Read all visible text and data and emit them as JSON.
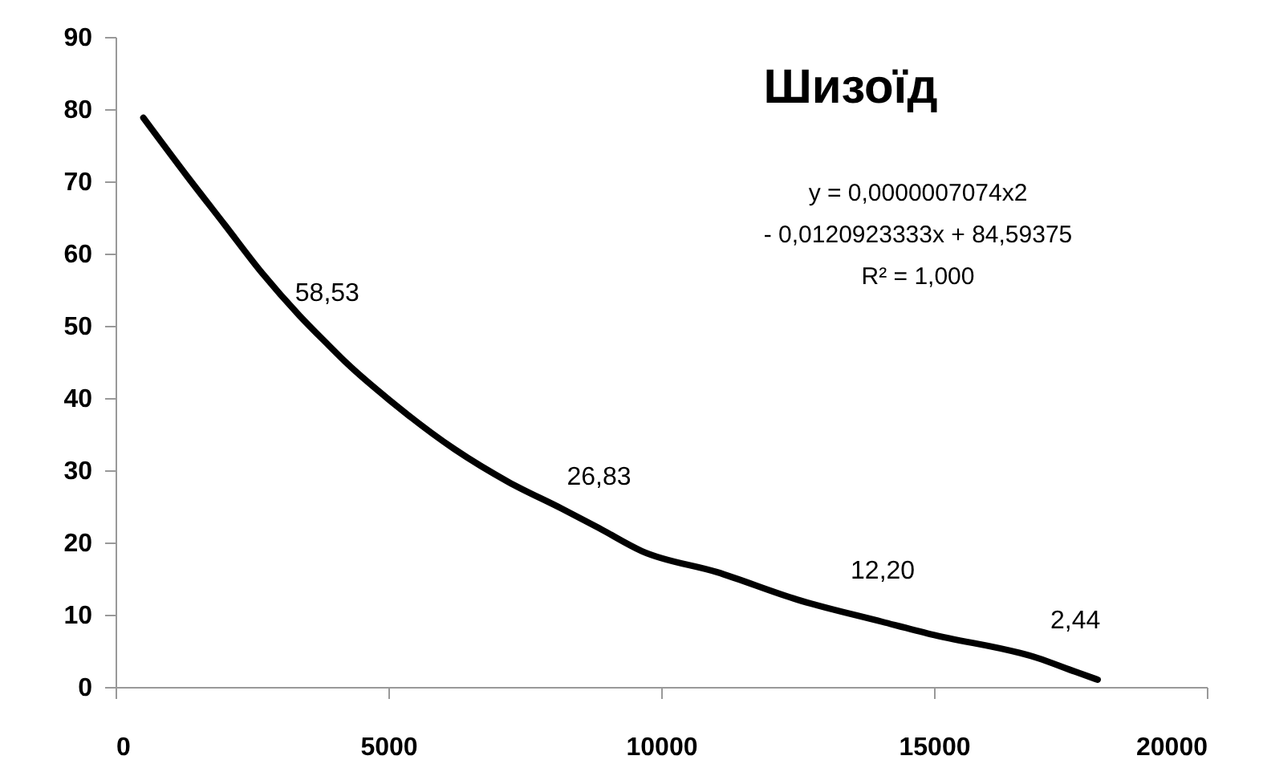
{
  "chart_data": {
    "type": "line",
    "title": "Шизоїд",
    "x": [
      510,
      1313,
      2000,
      2686,
      3373,
      3880,
      4255,
      5039,
      6216,
      7196,
      8176,
      8860,
      9647,
      11020,
      12490,
      14060,
      14940,
      16900,
      17590,
      18000
    ],
    "series": [
      {
        "color": "#000000",
        "values": [
          78.8,
          70.7,
          64,
          57.3,
          51.4,
          47.5,
          44.7,
          39.6,
          32.9,
          28.4,
          24.7,
          22.0,
          18.8,
          15.9,
          12.1,
          9.0,
          7.3,
          4.0,
          2.1,
          1.0
        ]
      }
    ],
    "xlim": [
      0,
      20000
    ],
    "xticks": [
      0,
      5000,
      10000,
      15000,
      20000
    ],
    "ylim": [
      0,
      90
    ],
    "yticks": [
      0,
      10,
      20,
      30,
      40,
      50,
      60,
      70,
      80,
      90
    ],
    "grid": false,
    "marker": "none",
    "line_style": "solid",
    "annotations": [
      {
        "text": "58,53",
        "x": 3880,
        "y": 47.5
      },
      {
        "text": "26,83",
        "x": 8860,
        "y": 22.0
      },
      {
        "text": "12,20",
        "x": 14060,
        "y": 9.0
      },
      {
        "text": "2,44",
        "x": 17590,
        "y": 2.1
      },
      "y = 0,0000007074x2",
      "- 0,0120923333x + 84,59375",
      "R² = 1,000"
    ]
  }
}
